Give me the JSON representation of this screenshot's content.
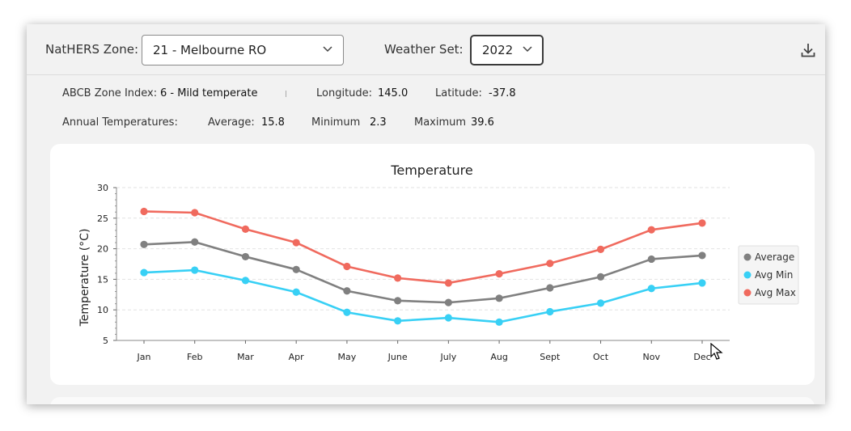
{
  "toolbar": {
    "zone_label": "NatHERS Zone:",
    "zone_value": "21 - Melbourne RO",
    "weather_label": "Weather Set:",
    "weather_value": "2022"
  },
  "info": {
    "abcb_label": "ABCB Zone Index:",
    "abcb_value": "6 - Mild temperate",
    "longitude_label": "Longitude:",
    "longitude_value": "145.0",
    "latitude_label": "Latitude:",
    "latitude_value": "-37.8",
    "annual_label": "Annual Temperatures:",
    "average_label": "Average:",
    "average_value": "15.8",
    "minimum_label": "Minimum",
    "minimum_value": "2.3",
    "maximum_label": "Maximum",
    "maximum_value": "39.6"
  },
  "chart_data": {
    "type": "line",
    "title": "Temperature",
    "xlabel": "",
    "ylabel": "Temperature (°C)",
    "ylim": [
      5,
      30
    ],
    "yticks": [
      5,
      10,
      15,
      20,
      25,
      30
    ],
    "grid": true,
    "legend_position": "right",
    "categories": [
      "Jan",
      "Feb",
      "Mar",
      "Apr",
      "May",
      "June",
      "July",
      "Aug",
      "Sept",
      "Oct",
      "Nov",
      "Dec"
    ],
    "series": [
      {
        "name": "Average",
        "color": "#808080",
        "values": [
          20.7,
          21.1,
          18.7,
          16.6,
          13.1,
          11.5,
          11.2,
          11.9,
          13.6,
          15.4,
          18.3,
          18.9
        ]
      },
      {
        "name": "Avg Min",
        "color": "#38d0f5",
        "values": [
          16.1,
          16.5,
          14.8,
          12.9,
          9.6,
          8.2,
          8.7,
          8.0,
          9.7,
          11.1,
          13.5,
          14.4
        ]
      },
      {
        "name": "Avg Max",
        "color": "#f06a5e",
        "values": [
          26.1,
          25.9,
          23.2,
          21.0,
          17.1,
          15.2,
          14.4,
          15.9,
          17.6,
          19.9,
          23.1,
          24.2
        ]
      }
    ]
  }
}
